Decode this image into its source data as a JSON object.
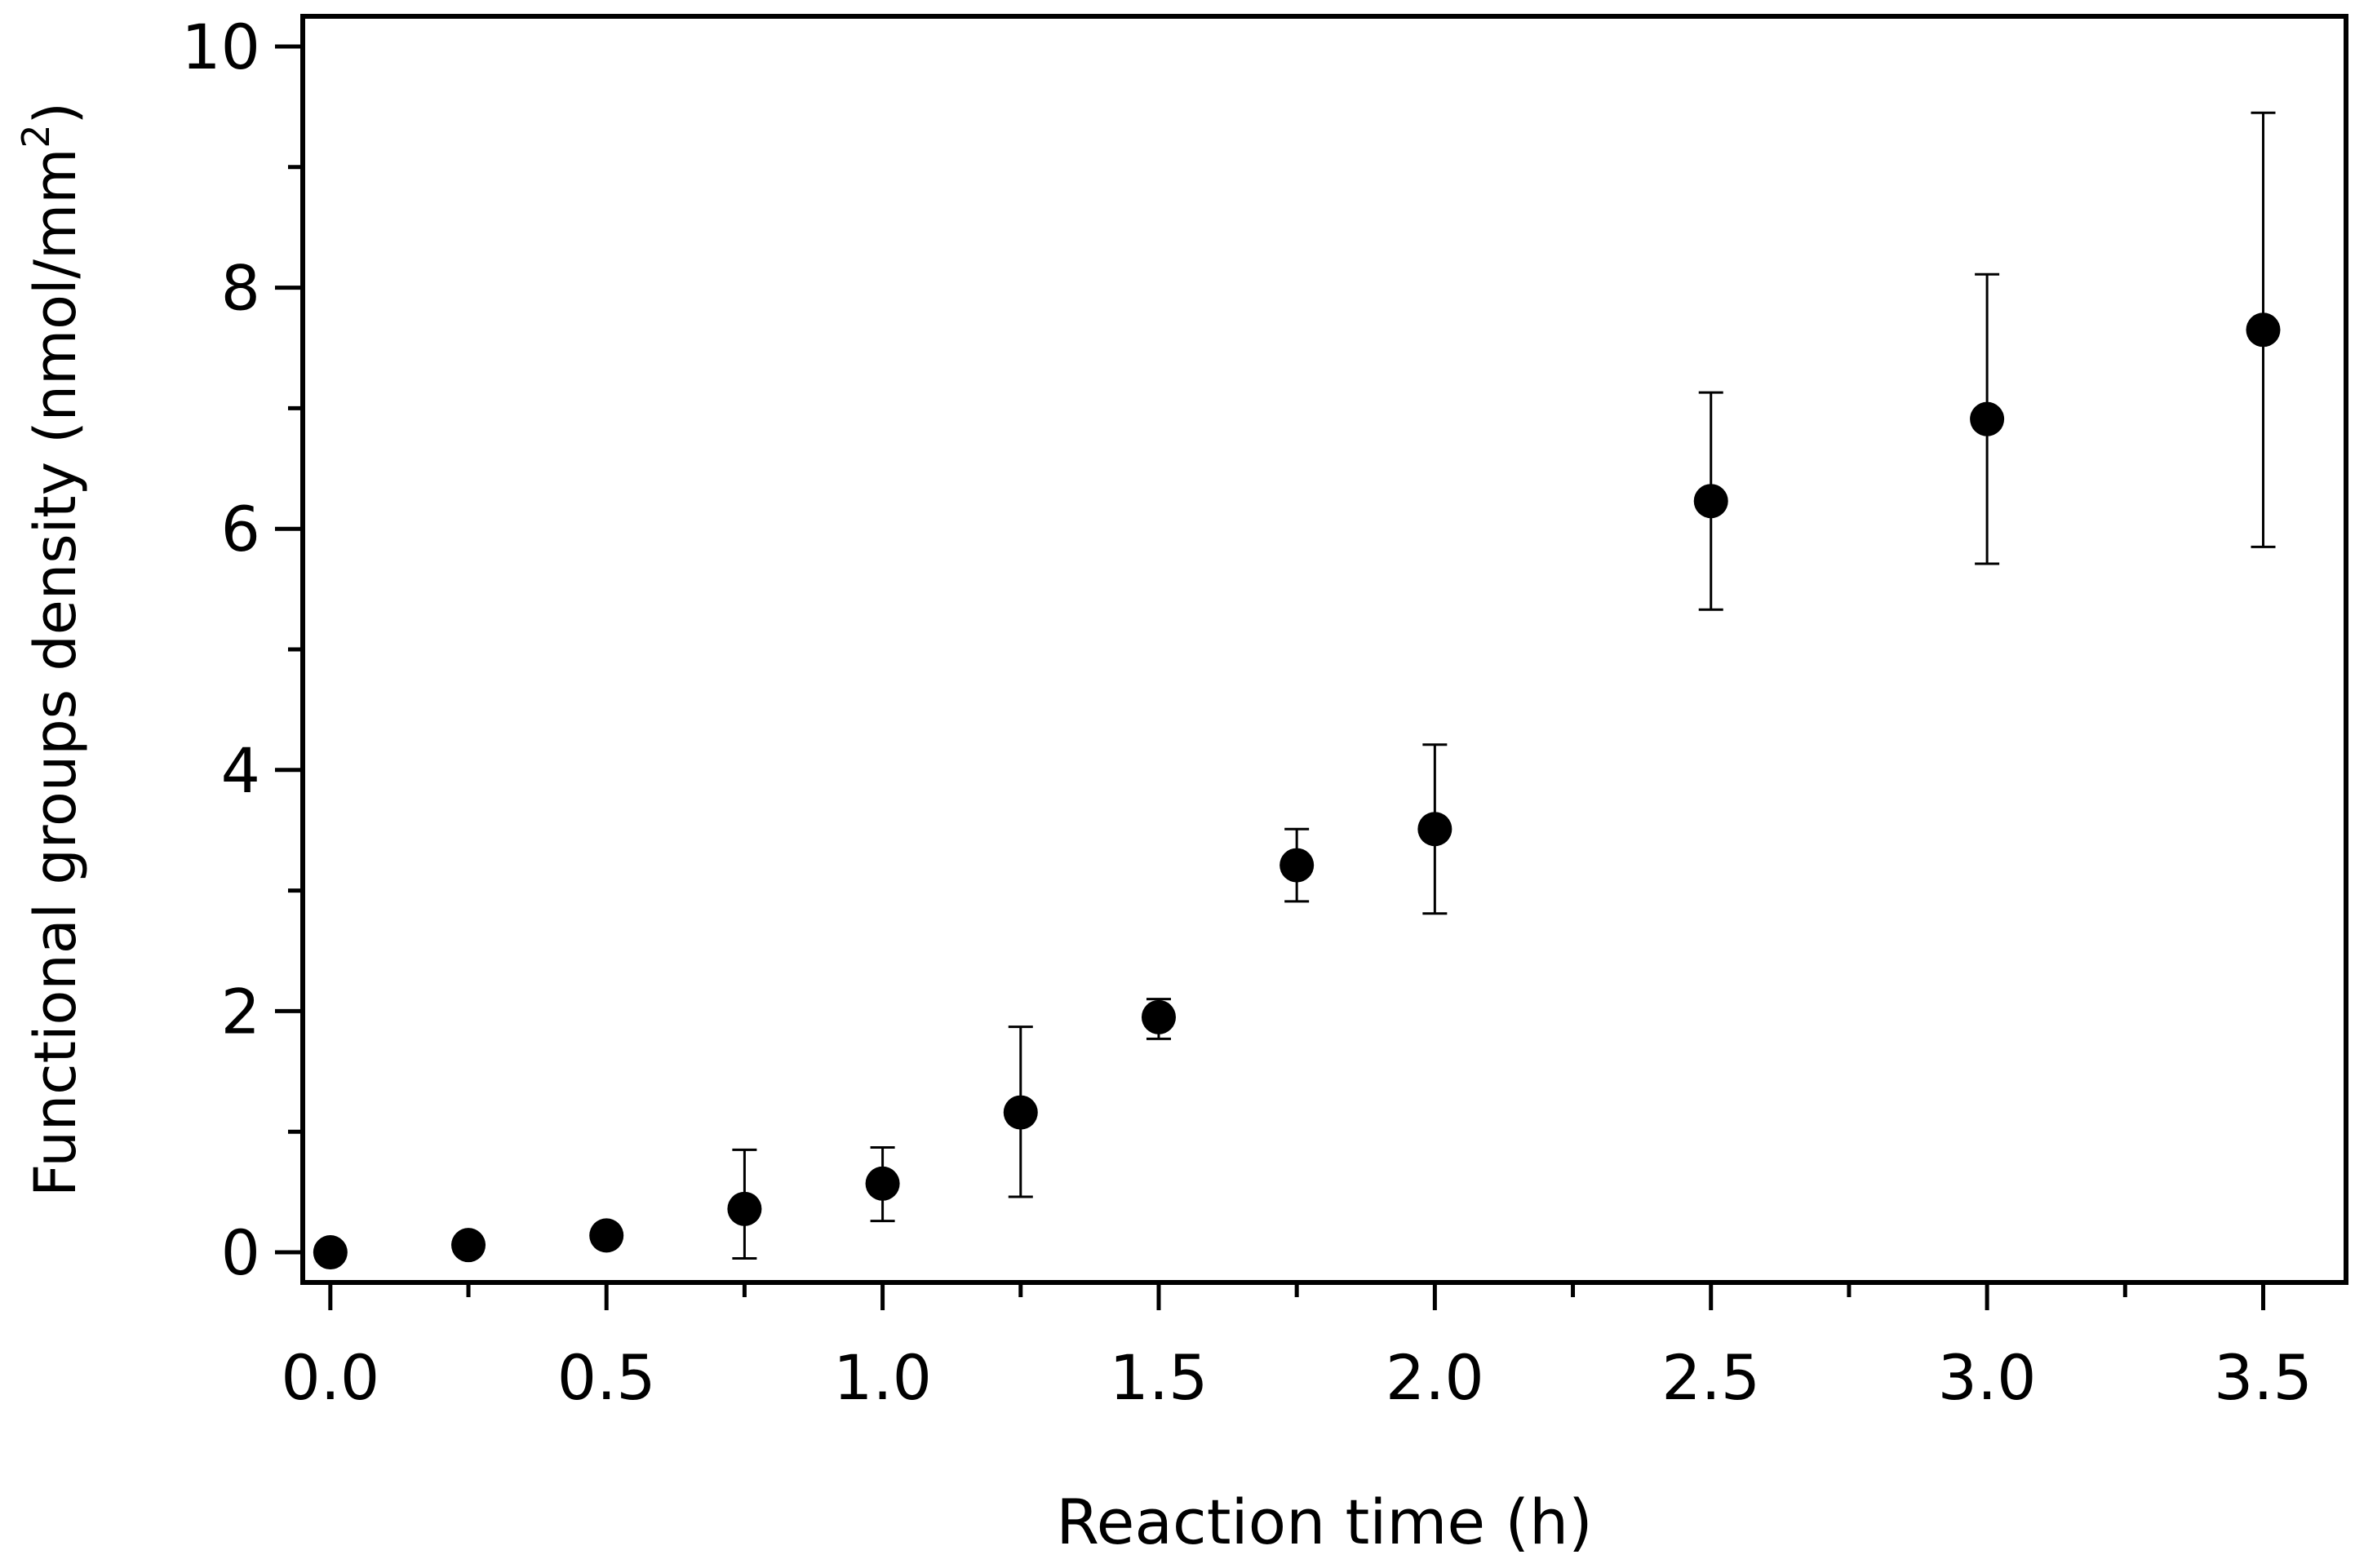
{
  "chart_data": {
    "type": "scatter",
    "title": "",
    "xlabel": "Reaction time (h)",
    "ylabel_main": "Functional groups density (nmol/mm",
    "ylabel_sup": "2",
    "ylabel_close": ")",
    "xlim": [
      -0.05,
      3.65
    ],
    "ylim": [
      -0.25,
      10.25
    ],
    "xticks": [
      {
        "value": 0.0,
        "label": "0.0"
      },
      {
        "value": 0.5,
        "label": "0.5"
      },
      {
        "value": 1.0,
        "label": "1.0"
      },
      {
        "value": 1.5,
        "label": "1.5"
      },
      {
        "value": 2.0,
        "label": "2.0"
      },
      {
        "value": 2.5,
        "label": "2.5"
      },
      {
        "value": 3.0,
        "label": "3.0"
      },
      {
        "value": 3.5,
        "label": "3.5"
      }
    ],
    "xminor": [
      0.25,
      0.75,
      1.25,
      1.75,
      2.25,
      2.75,
      3.25
    ],
    "yticks": [
      {
        "value": 0,
        "label": "0"
      },
      {
        "value": 2,
        "label": "2"
      },
      {
        "value": 4,
        "label": "4"
      },
      {
        "value": 6,
        "label": "6"
      },
      {
        "value": 8,
        "label": "8"
      },
      {
        "value": 10,
        "label": "10"
      }
    ],
    "yminor": [
      1,
      3,
      5,
      7,
      9
    ],
    "grid": false,
    "legend": "none",
    "marker_color": "#000000",
    "series": [
      {
        "name": "Functional groups density",
        "points": [
          {
            "x": 0.0,
            "y": 0.0,
            "err_low": 0.0,
            "err_high": 0.0
          },
          {
            "x": 0.25,
            "y": 0.06,
            "err_low": 0.06,
            "err_high": 0.06
          },
          {
            "x": 0.5,
            "y": 0.14,
            "err_low": 0.14,
            "err_high": 0.14
          },
          {
            "x": 0.75,
            "y": 0.36,
            "err_low": -0.05,
            "err_high": 0.85
          },
          {
            "x": 1.0,
            "y": 0.57,
            "err_low": 0.26,
            "err_high": 0.87
          },
          {
            "x": 1.25,
            "y": 1.16,
            "err_low": 0.46,
            "err_high": 1.87
          },
          {
            "x": 1.5,
            "y": 1.95,
            "err_low": 1.77,
            "err_high": 2.1
          },
          {
            "x": 1.75,
            "y": 3.21,
            "err_low": 2.91,
            "err_high": 3.51
          },
          {
            "x": 2.0,
            "y": 3.51,
            "err_low": 2.81,
            "err_high": 4.21
          },
          {
            "x": 2.5,
            "y": 6.23,
            "err_low": 5.33,
            "err_high": 7.13
          },
          {
            "x": 3.0,
            "y": 6.91,
            "err_low": 5.71,
            "err_high": 8.11
          },
          {
            "x": 3.5,
            "y": 7.65,
            "err_low": 5.85,
            "err_high": 9.45
          }
        ]
      }
    ]
  }
}
